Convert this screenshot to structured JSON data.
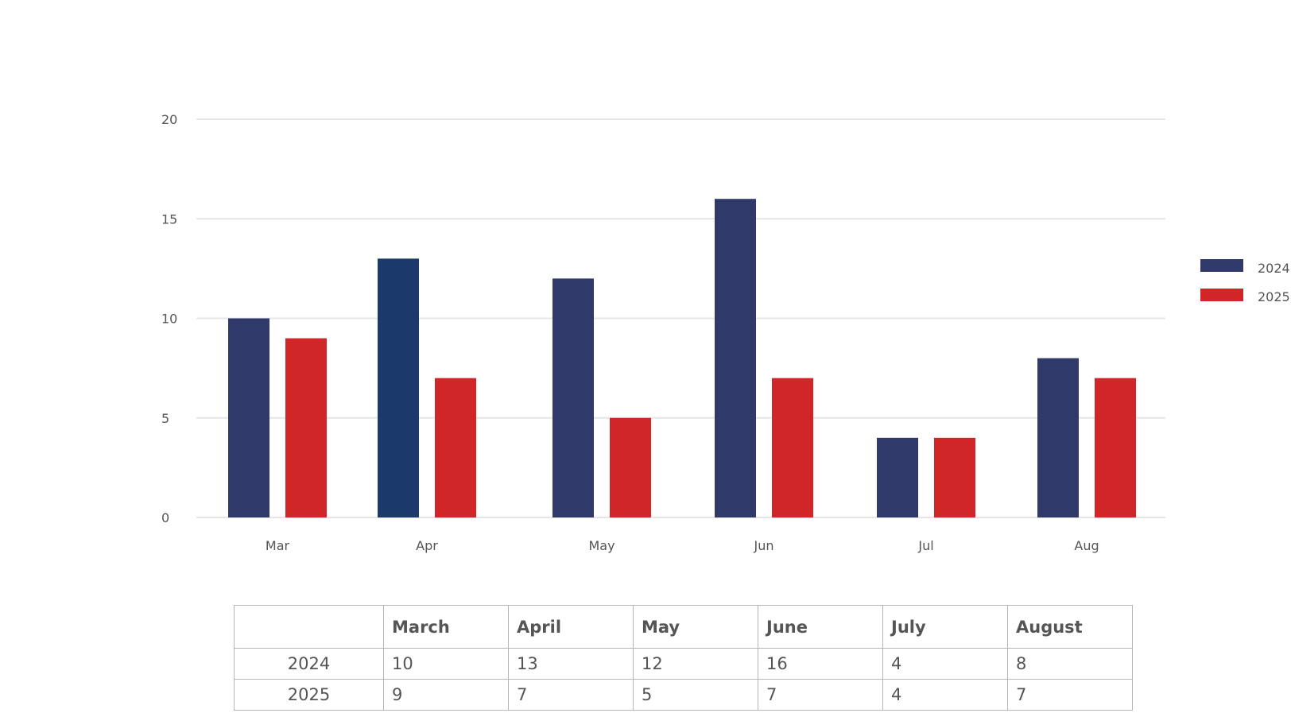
{
  "colors": {
    "series_2024": "#2f3a6b",
    "series_2024_highlight": "#1b3a6b",
    "series_2025": "#d12628",
    "grid": "#e6e6e6",
    "text": "#555555"
  },
  "chart_data": {
    "type": "bar",
    "categories": [
      "Mar",
      "Apr",
      "May",
      "Jun",
      "Jul",
      "Aug"
    ],
    "series": [
      {
        "name": "2024",
        "values": [
          10,
          13,
          12,
          16,
          4,
          8
        ]
      },
      {
        "name": "2025",
        "values": [
          9,
          7,
          5,
          7,
          4,
          7
        ]
      }
    ],
    "y_ticks": [
      "0",
      "5",
      "10",
      "15",
      "20"
    ],
    "ylim": [
      0,
      20
    ],
    "grid": true,
    "legend_position": "right"
  },
  "table": {
    "corner": "",
    "headers": [
      "March",
      "April",
      "May",
      "June",
      "July",
      "August"
    ],
    "rows": [
      {
        "label": "2024",
        "cells": [
          "10",
          "13",
          "12",
          "16",
          "4",
          "8"
        ]
      },
      {
        "label": "2025",
        "cells": [
          "9",
          "7",
          "5",
          "7",
          "4",
          "7"
        ]
      }
    ]
  }
}
